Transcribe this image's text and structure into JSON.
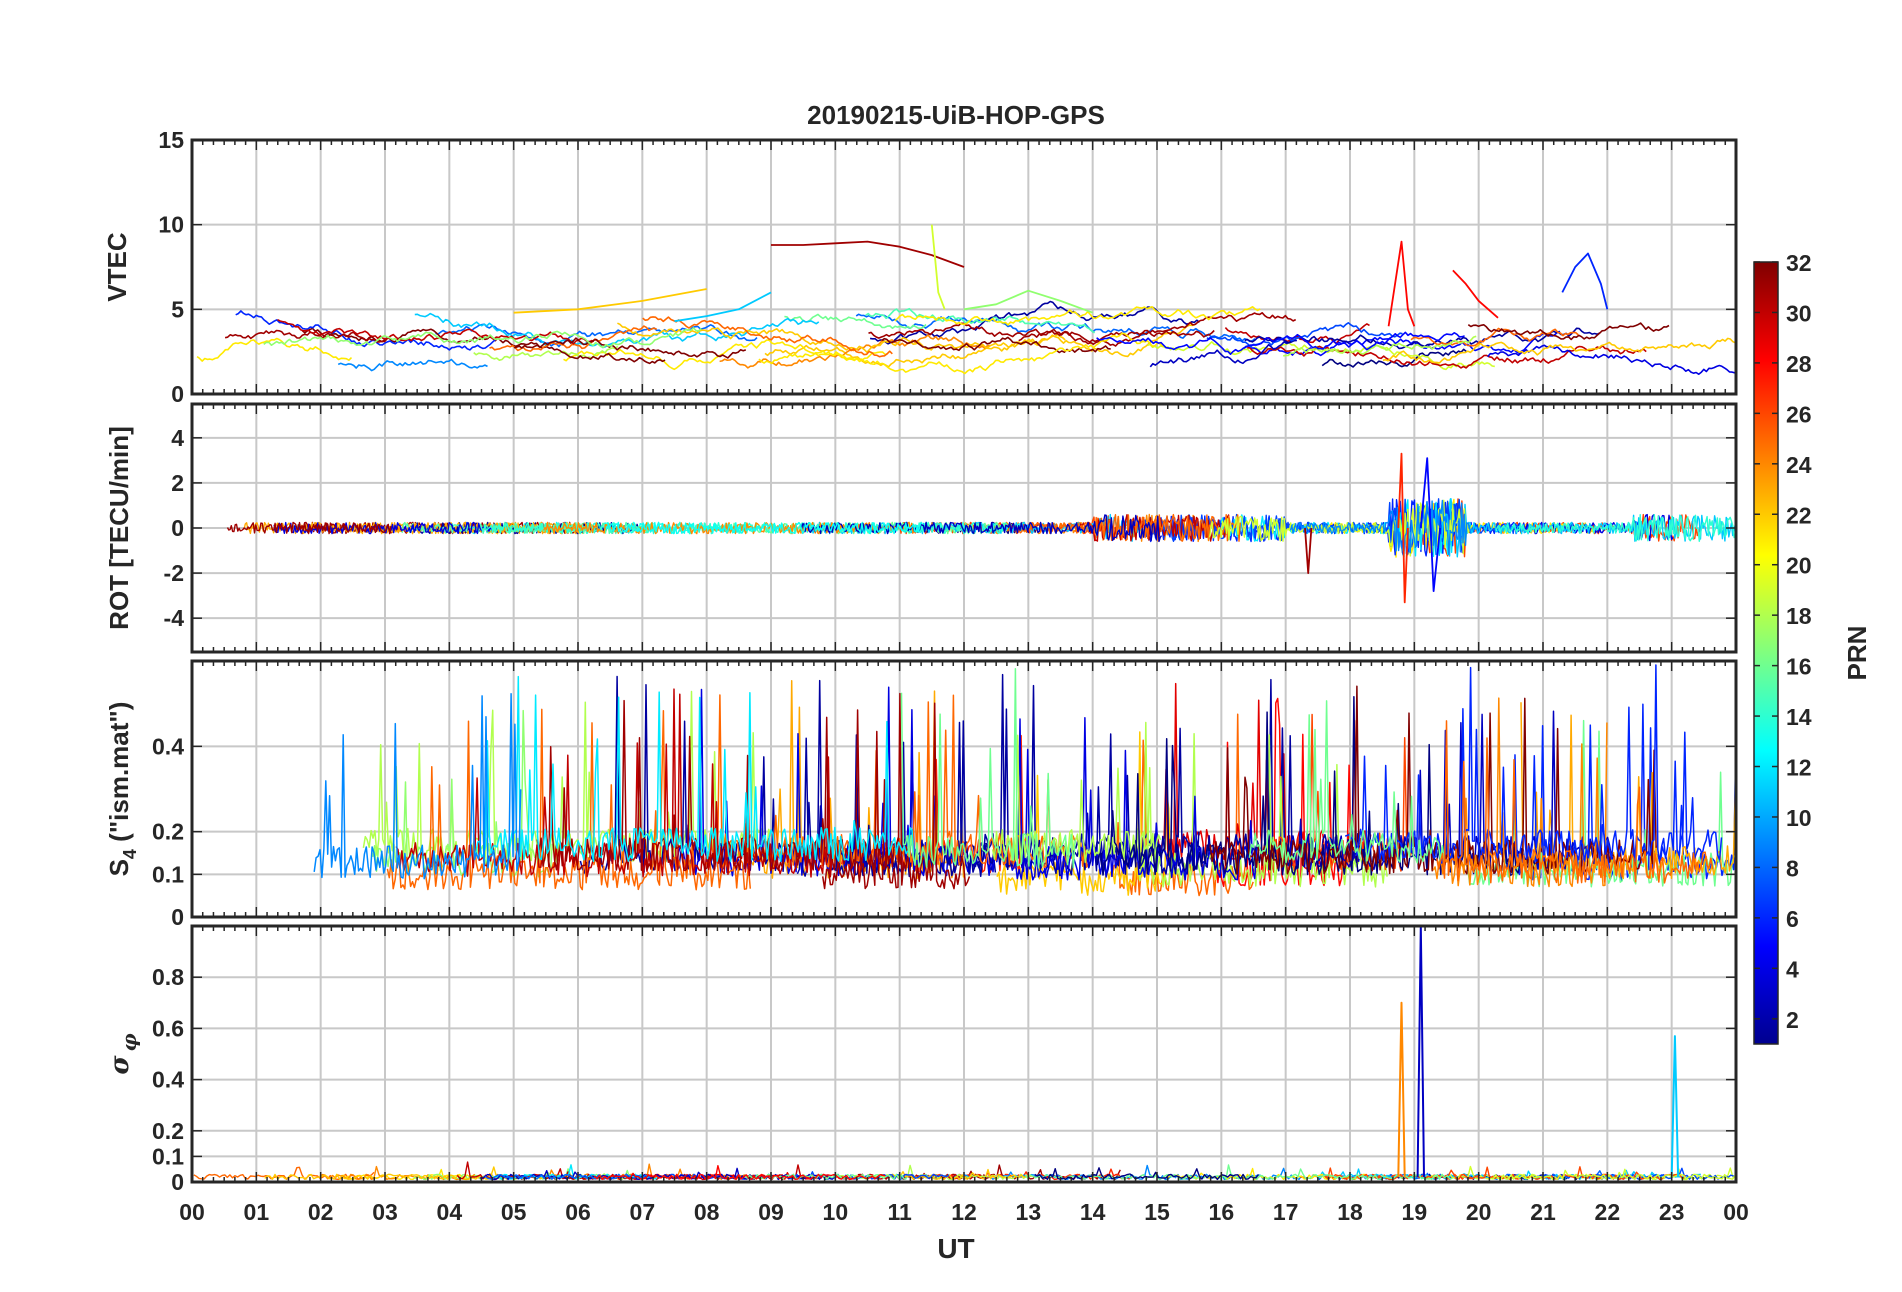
{
  "chart_data": {
    "type": "line",
    "title": "20190215-UiB-HOP-GPS",
    "xlabel": "UT",
    "x_tick_labels": [
      "00",
      "01",
      "02",
      "03",
      "04",
      "05",
      "06",
      "07",
      "08",
      "09",
      "10",
      "11",
      "12",
      "13",
      "14",
      "15",
      "16",
      "17",
      "18",
      "19",
      "20",
      "21",
      "22",
      "23",
      "00"
    ],
    "xlim": [
      0,
      24
    ],
    "grid": true,
    "colorbar": {
      "label": "PRN",
      "range": [
        1,
        32
      ],
      "ticks": [
        "2",
        "4",
        "6",
        "8",
        "10",
        "12",
        "14",
        "16",
        "18",
        "20",
        "22",
        "24",
        "26",
        "28",
        "30",
        "32"
      ],
      "colormap": "jet"
    },
    "panels": [
      {
        "id": "vtec",
        "ylabel": "VTEC",
        "ylim": [
          0,
          15
        ],
        "y_ticks": [
          0,
          5,
          10,
          15
        ],
        "y_tick_labels": [
          "0",
          "5",
          "10",
          "15"
        ],
        "description": "Vertical TEC per PRN, typically 1-6 TECU; arc near 9 TECU from 09 to 12 UT; spike to 9 at 18.8 UT; peak 8.3 near 21.6 UT",
        "series": [
          {
            "prn": 31,
            "x": [
              9.0,
              9.5,
              10.0,
              10.5,
              11.0,
              11.5,
              12.0
            ],
            "y": [
              8.8,
              8.8,
              8.9,
              9.0,
              8.7,
              8.2,
              7.5
            ]
          },
          {
            "prn": 22,
            "x": [
              5.0,
              6.0,
              7.0,
              8.0
            ],
            "y": [
              4.8,
              5.0,
              5.5,
              6.2
            ]
          },
          {
            "prn": 11,
            "x": [
              7.5,
              8.0,
              8.5,
              9.0
            ],
            "y": [
              4.3,
              4.6,
              5.0,
              6.0
            ]
          },
          {
            "prn": 17,
            "x": [
              12.0,
              12.5,
              13.0,
              13.5,
              14.0
            ],
            "y": [
              5.0,
              5.3,
              6.1,
              5.5,
              4.8
            ]
          },
          {
            "prn": 19,
            "x": [
              11.5,
              11.55,
              11.6,
              11.7
            ],
            "y": [
              10.0,
              8.0,
              6.0,
              5.0
            ]
          },
          {
            "prn": 6,
            "x": [
              21.3,
              21.5,
              21.7,
              21.9,
              22.0
            ],
            "y": [
              6.0,
              7.5,
              8.3,
              6.5,
              5.0
            ]
          },
          {
            "prn": 28,
            "x": [
              18.6,
              18.8,
              18.9,
              19.0
            ],
            "y": [
              4.0,
              9.0,
              5.0,
              4.0
            ]
          },
          {
            "prn": 28,
            "x": [
              19.6,
              19.8,
              20.0,
              20.3
            ],
            "y": [
              7.3,
              6.5,
              5.5,
              4.5
            ]
          }
        ]
      },
      {
        "id": "rot",
        "ylabel": "ROT [TECU/min]",
        "ylim": [
          -5.5,
          5.5
        ],
        "y_ticks": [
          -4,
          -2,
          0,
          2,
          4
        ],
        "y_tick_labels": [
          "-4",
          "-2",
          "0",
          "2",
          "4"
        ],
        "description": "Rate of TEC, mostly within ±0.5; bursts up to ±3 near 18.8–19.5 UT; bursts near 15–17 UT and 22.5–24 UT",
        "series": [
          {
            "prn": 27,
            "x": [
              18.75,
              18.8,
              18.85,
              18.9
            ],
            "y": [
              0.0,
              3.3,
              -3.3,
              0.0
            ]
          },
          {
            "prn": 5,
            "x": [
              19.1,
              19.2,
              19.3,
              19.4
            ],
            "y": [
              0.0,
              3.1,
              -2.8,
              0.0
            ]
          },
          {
            "prn": 31,
            "x": [
              17.3,
              17.35,
              17.4
            ],
            "y": [
              0.0,
              -2.0,
              0.0
            ]
          }
        ]
      },
      {
        "id": "s4",
        "ylabel": "S4 (\"ism.mat\")",
        "ylabel_main": "S",
        "ylabel_sub": "4",
        "ylabel_rest": " (\"ism.mat\")",
        "ylim": [
          0,
          0.6
        ],
        "y_ticks": [
          0,
          0.1,
          0.2,
          0.4
        ],
        "y_tick_labels": [
          "0",
          "0.1",
          "0.2",
          "0.4"
        ],
        "description": "Amplitude scintillation index per PRN, baseline 0.05–0.15 with frequent peaks to 0.3–0.6"
      },
      {
        "id": "sigphi",
        "ylabel": "σφ",
        "ylabel_main": "σ",
        "ylabel_sub": "φ",
        "ylim": [
          0,
          1
        ],
        "y_ticks": [
          0,
          0.1,
          0.2,
          0.4,
          0.6,
          0.8
        ],
        "y_tick_labels": [
          "0",
          "0.1",
          "0.2",
          "0.4",
          "0.6",
          "0.8"
        ],
        "description": "Phase scintillation index, mostly below 0.05; spikes 0.7 at 18.8 UT, 1.0 at 19.1 UT, 0.57 at 23.05 UT",
        "series": [
          {
            "prn": 24,
            "x": [
              18.75,
              18.8,
              18.85
            ],
            "y": [
              0.02,
              0.7,
              0.02
            ]
          },
          {
            "prn": 3,
            "x": [
              19.05,
              19.1,
              19.15
            ],
            "y": [
              0.02,
              1.0,
              0.02
            ]
          },
          {
            "prn": 11,
            "x": [
              23.0,
              23.05,
              23.1
            ],
            "y": [
              0.02,
              0.57,
              0.02
            ]
          }
        ]
      }
    ]
  }
}
